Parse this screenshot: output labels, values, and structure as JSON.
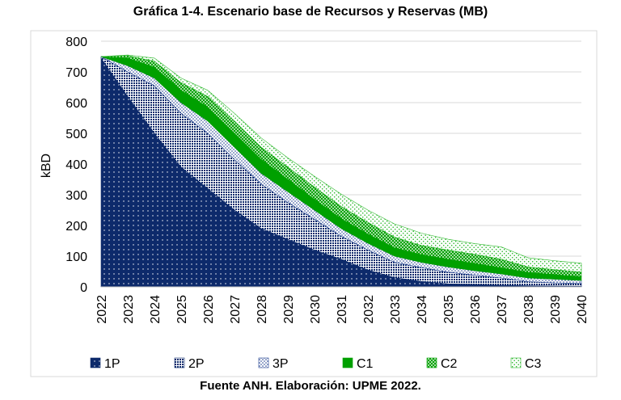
{
  "chart_data": {
    "type": "area",
    "title": "Gráfica 1-4. Escenario base de Recursos y Reservas (MB)",
    "source": "Fuente ANH. Elaboración: UPME 2022.",
    "xlabel": "",
    "ylabel": "kBD",
    "ylim": [
      0,
      800
    ],
    "yticks": [
      0,
      100,
      200,
      300,
      400,
      500,
      600,
      700,
      800
    ],
    "stacked": true,
    "grid": true,
    "legend_position": "bottom",
    "x": [
      "2022",
      "2023",
      "2024",
      "2025",
      "2026",
      "2027",
      "2028",
      "2029",
      "2030",
      "2031",
      "2032",
      "2033",
      "2034",
      "2035",
      "2036",
      "2037",
      "2038",
      "2039",
      "2040"
    ],
    "series": [
      {
        "name": "1P",
        "color": "#0d2a6b",
        "pattern": "small-dots",
        "values": [
          745,
          620,
          500,
          390,
          320,
          250,
          190,
          155,
          120,
          90,
          55,
          30,
          18,
          10,
          8,
          5,
          4,
          3,
          2
        ]
      },
      {
        "name": "2P",
        "color": "#0d2a6b",
        "pattern": "dense-dots",
        "values": [
          5,
          80,
          155,
          175,
          180,
          165,
          145,
          120,
          100,
          75,
          65,
          50,
          45,
          38,
          30,
          24,
          13,
          10,
          9
        ]
      },
      {
        "name": "3P",
        "color": "#1f3f8f",
        "pattern": "sparse-dots",
        "values": [
          0,
          20,
          25,
          35,
          40,
          40,
          35,
          35,
          30,
          25,
          22,
          20,
          17,
          17,
          15,
          13,
          12,
          12,
          10
        ]
      },
      {
        "name": "C1",
        "color": "#00a000",
        "pattern": "solid",
        "values": [
          0,
          25,
          35,
          40,
          45,
          45,
          45,
          40,
          35,
          32,
          30,
          27,
          25,
          25,
          23,
          20,
          18,
          15,
          12
        ]
      },
      {
        "name": "C2",
        "color": "#00a000",
        "pattern": "crosshatch",
        "values": [
          0,
          8,
          20,
          25,
          35,
          40,
          40,
          40,
          40,
          40,
          38,
          35,
          30,
          30,
          30,
          28,
          18,
          16,
          15
        ]
      },
      {
        "name": "C3",
        "color": "#2eb82e",
        "pattern": "sparse-dots",
        "values": [
          0,
          2,
          10,
          15,
          20,
          25,
          30,
          30,
          35,
          40,
          40,
          43,
          40,
          35,
          35,
          40,
          30,
          29,
          29
        ]
      }
    ]
  }
}
